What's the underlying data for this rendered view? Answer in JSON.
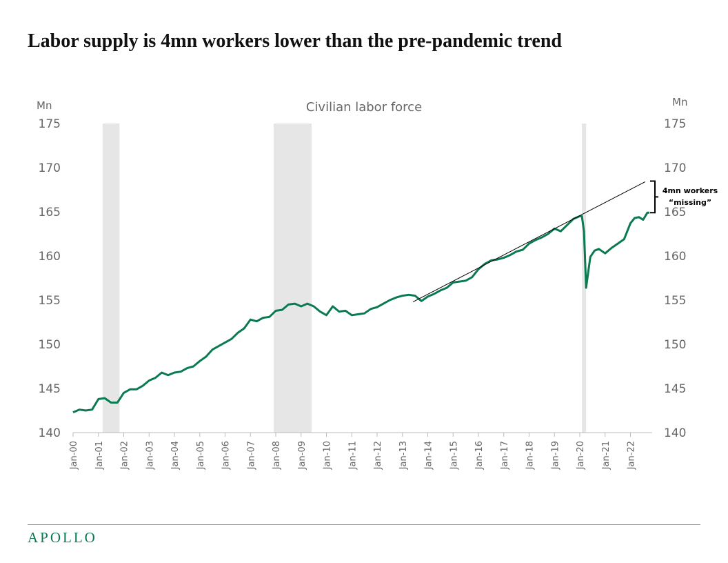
{
  "title": "Labor supply is 4mn workers lower than the pre-pandemic trend",
  "logo": "APOLLO",
  "colors": {
    "series": "#0a7a50",
    "recession": "#e6e6e6",
    "trend": "#000000",
    "axis_text": "#666666"
  },
  "chart_data": {
    "type": "line",
    "title": "Civilian labor force",
    "ylabel_left": "Mn",
    "ylabel_right": "Mn",
    "ylim": [
      140,
      175
    ],
    "yticks": [
      140,
      145,
      150,
      155,
      160,
      165,
      170,
      175
    ],
    "xlim": [
      "2000-01",
      "2022-10"
    ],
    "xticks": [
      "Jan-00",
      "Jan-01",
      "Jan-02",
      "Jan-03",
      "Jan-04",
      "Jan-05",
      "Jan-06",
      "Jan-07",
      "Jan-08",
      "Jan-09",
      "Jan-10",
      "Jan-11",
      "Jan-12",
      "Jan-13",
      "Jan-14",
      "Jan-15",
      "Jan-16",
      "Jan-17",
      "Jan-18",
      "Jan-19",
      "Jan-20",
      "Jan-21",
      "Jan-22"
    ],
    "grid": false,
    "recessions": [
      [
        "2001-03",
        "2001-11"
      ],
      [
        "2007-12",
        "2009-06"
      ],
      [
        "2020-02",
        "2020-04"
      ]
    ],
    "series": [
      {
        "values": [
          [
            "2000-01",
            142.3
          ],
          [
            "2000-04",
            142.6
          ],
          [
            "2000-07",
            142.5
          ],
          [
            "2000-10",
            142.6
          ],
          [
            "2001-01",
            143.8
          ],
          [
            "2001-04",
            143.9
          ],
          [
            "2001-07",
            143.4
          ],
          [
            "2001-10",
            143.4
          ],
          [
            "2002-01",
            144.5
          ],
          [
            "2002-04",
            144.9
          ],
          [
            "2002-07",
            144.9
          ],
          [
            "2002-10",
            145.3
          ],
          [
            "2003-01",
            145.9
          ],
          [
            "2003-04",
            146.2
          ],
          [
            "2003-07",
            146.8
          ],
          [
            "2003-10",
            146.5
          ],
          [
            "2004-01",
            146.8
          ],
          [
            "2004-04",
            146.9
          ],
          [
            "2004-07",
            147.3
          ],
          [
            "2004-10",
            147.5
          ],
          [
            "2005-01",
            148.1
          ],
          [
            "2005-04",
            148.6
          ],
          [
            "2005-07",
            149.4
          ],
          [
            "2005-10",
            149.8
          ],
          [
            "2006-01",
            150.2
          ],
          [
            "2006-04",
            150.6
          ],
          [
            "2006-07",
            151.3
          ],
          [
            "2006-10",
            151.8
          ],
          [
            "2007-01",
            152.8
          ],
          [
            "2007-04",
            152.6
          ],
          [
            "2007-07",
            153.0
          ],
          [
            "2007-10",
            153.1
          ],
          [
            "2008-01",
            153.8
          ],
          [
            "2008-04",
            153.9
          ],
          [
            "2008-07",
            154.5
          ],
          [
            "2008-10",
            154.6
          ],
          [
            "2009-01",
            154.3
          ],
          [
            "2009-04",
            154.6
          ],
          [
            "2009-07",
            154.3
          ],
          [
            "2009-10",
            153.7
          ],
          [
            "2010-01",
            153.3
          ],
          [
            "2010-04",
            154.3
          ],
          [
            "2010-07",
            153.7
          ],
          [
            "2010-10",
            153.8
          ],
          [
            "2011-01",
            153.3
          ],
          [
            "2011-04",
            153.4
          ],
          [
            "2011-07",
            153.5
          ],
          [
            "2011-10",
            154.0
          ],
          [
            "2012-01",
            154.2
          ],
          [
            "2012-04",
            154.6
          ],
          [
            "2012-07",
            155.0
          ],
          [
            "2012-10",
            155.3
          ],
          [
            "2013-01",
            155.5
          ],
          [
            "2013-04",
            155.6
          ],
          [
            "2013-07",
            155.5
          ],
          [
            "2013-10",
            154.9
          ],
          [
            "2014-01",
            155.4
          ],
          [
            "2014-04",
            155.7
          ],
          [
            "2014-07",
            156.1
          ],
          [
            "2014-10",
            156.4
          ],
          [
            "2015-01",
            157.0
          ],
          [
            "2015-04",
            157.1
          ],
          [
            "2015-07",
            157.2
          ],
          [
            "2015-10",
            157.6
          ],
          [
            "2016-01",
            158.5
          ],
          [
            "2016-04",
            159.1
          ],
          [
            "2016-07",
            159.5
          ],
          [
            "2016-10",
            159.6
          ],
          [
            "2017-01",
            159.8
          ],
          [
            "2017-04",
            160.1
          ],
          [
            "2017-07",
            160.5
          ],
          [
            "2017-10",
            160.7
          ],
          [
            "2018-01",
            161.4
          ],
          [
            "2018-04",
            161.8
          ],
          [
            "2018-07",
            162.1
          ],
          [
            "2018-10",
            162.5
          ],
          [
            "2019-01",
            163.1
          ],
          [
            "2019-04",
            162.8
          ],
          [
            "2019-07",
            163.5
          ],
          [
            "2019-10",
            164.2
          ],
          [
            "2020-01",
            164.5
          ],
          [
            "2020-02",
            164.5
          ],
          [
            "2020-03",
            162.8
          ],
          [
            "2020-04",
            156.4
          ],
          [
            "2020-05",
            158.2
          ],
          [
            "2020-06",
            159.9
          ],
          [
            "2020-08",
            160.6
          ],
          [
            "2020-10",
            160.8
          ],
          [
            "2021-01",
            160.3
          ],
          [
            "2021-04",
            160.9
          ],
          [
            "2021-07",
            161.4
          ],
          [
            "2021-10",
            161.9
          ],
          [
            "2022-01",
            163.7
          ],
          [
            "2022-03",
            164.3
          ],
          [
            "2022-05",
            164.4
          ],
          [
            "2022-07",
            164.1
          ],
          [
            "2022-09",
            164.9
          ],
          [
            "2022-10",
            164.9
          ]
        ]
      }
    ],
    "trend": [
      [
        "2013-06",
        154.8
      ],
      [
        "2022-08",
        168.4
      ]
    ],
    "annotation": {
      "line1": "4mn workers",
      "line2": "“missing”"
    }
  }
}
